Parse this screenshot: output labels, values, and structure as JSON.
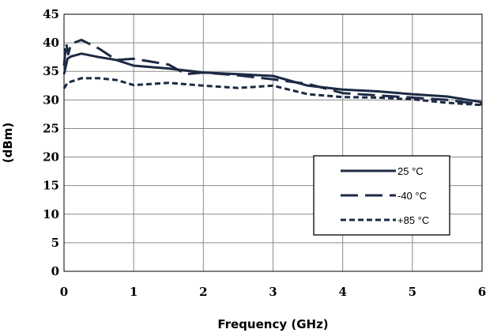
{
  "chart_data": {
    "type": "line",
    "title": "",
    "xlabel": "Frequency (GHz)",
    "ylabel": "(dBm)",
    "xlim": [
      0,
      6
    ],
    "ylim": [
      0,
      45
    ],
    "x_ticks": [
      0,
      1,
      2,
      3,
      4,
      5,
      6
    ],
    "y_ticks": [
      0,
      5,
      10,
      15,
      20,
      25,
      30,
      35,
      40,
      45
    ],
    "x_tick_labels": [
      "0",
      "1",
      "2",
      "3",
      "4",
      "5",
      "6"
    ],
    "y_tick_labels": [
      "0",
      "5",
      "10",
      "15",
      "20",
      "25",
      "30",
      "35",
      "40",
      "45"
    ],
    "grid": true,
    "legend_position": "right-middle",
    "series": [
      {
        "name": "25 °C",
        "dash": "solid",
        "color": "#1c2a44",
        "points": [
          [
            0.0,
            34.5
          ],
          [
            0.05,
            37.2
          ],
          [
            0.1,
            37.6
          ],
          [
            0.25,
            38.1
          ],
          [
            0.5,
            37.5
          ],
          [
            0.75,
            37.0
          ],
          [
            1.0,
            36.0
          ],
          [
            1.5,
            35.5
          ],
          [
            2.0,
            34.8
          ],
          [
            2.5,
            34.5
          ],
          [
            3.0,
            34.2
          ],
          [
            3.5,
            32.5
          ],
          [
            4.0,
            31.8
          ],
          [
            4.5,
            31.5
          ],
          [
            5.0,
            31.0
          ],
          [
            5.5,
            30.6
          ],
          [
            6.0,
            29.6
          ]
        ]
      },
      {
        "name": "-40 °C",
        "dash": "long-dash",
        "color": "#1c2a44",
        "points": [
          [
            0.0,
            36.0
          ],
          [
            0.03,
            40.0
          ],
          [
            0.06,
            38.0
          ],
          [
            0.1,
            39.8
          ],
          [
            0.25,
            40.5
          ],
          [
            0.5,
            39.0
          ],
          [
            0.75,
            37.0
          ],
          [
            1.0,
            37.2
          ],
          [
            1.5,
            36.2
          ],
          [
            1.75,
            34.5
          ],
          [
            2.0,
            34.8
          ],
          [
            2.5,
            34.3
          ],
          [
            3.0,
            33.6
          ],
          [
            3.5,
            32.8
          ],
          [
            4.0,
            31.2
          ],
          [
            4.5,
            30.8
          ],
          [
            5.0,
            30.4
          ],
          [
            5.5,
            30.0
          ],
          [
            6.0,
            29.2
          ]
        ]
      },
      {
        "name": "+85 °C",
        "dash": "short-dash",
        "color": "#1c2a44",
        "points": [
          [
            0.0,
            32.0
          ],
          [
            0.05,
            33.0
          ],
          [
            0.1,
            33.2
          ],
          [
            0.25,
            33.8
          ],
          [
            0.5,
            33.8
          ],
          [
            0.75,
            33.5
          ],
          [
            1.0,
            32.6
          ],
          [
            1.5,
            33.0
          ],
          [
            2.0,
            32.5
          ],
          [
            2.5,
            32.1
          ],
          [
            3.0,
            32.5
          ],
          [
            3.5,
            31.0
          ],
          [
            4.0,
            30.5
          ],
          [
            4.5,
            30.4
          ],
          [
            5.0,
            30.1
          ],
          [
            5.5,
            29.5
          ],
          [
            6.0,
            29.1
          ]
        ]
      }
    ]
  }
}
